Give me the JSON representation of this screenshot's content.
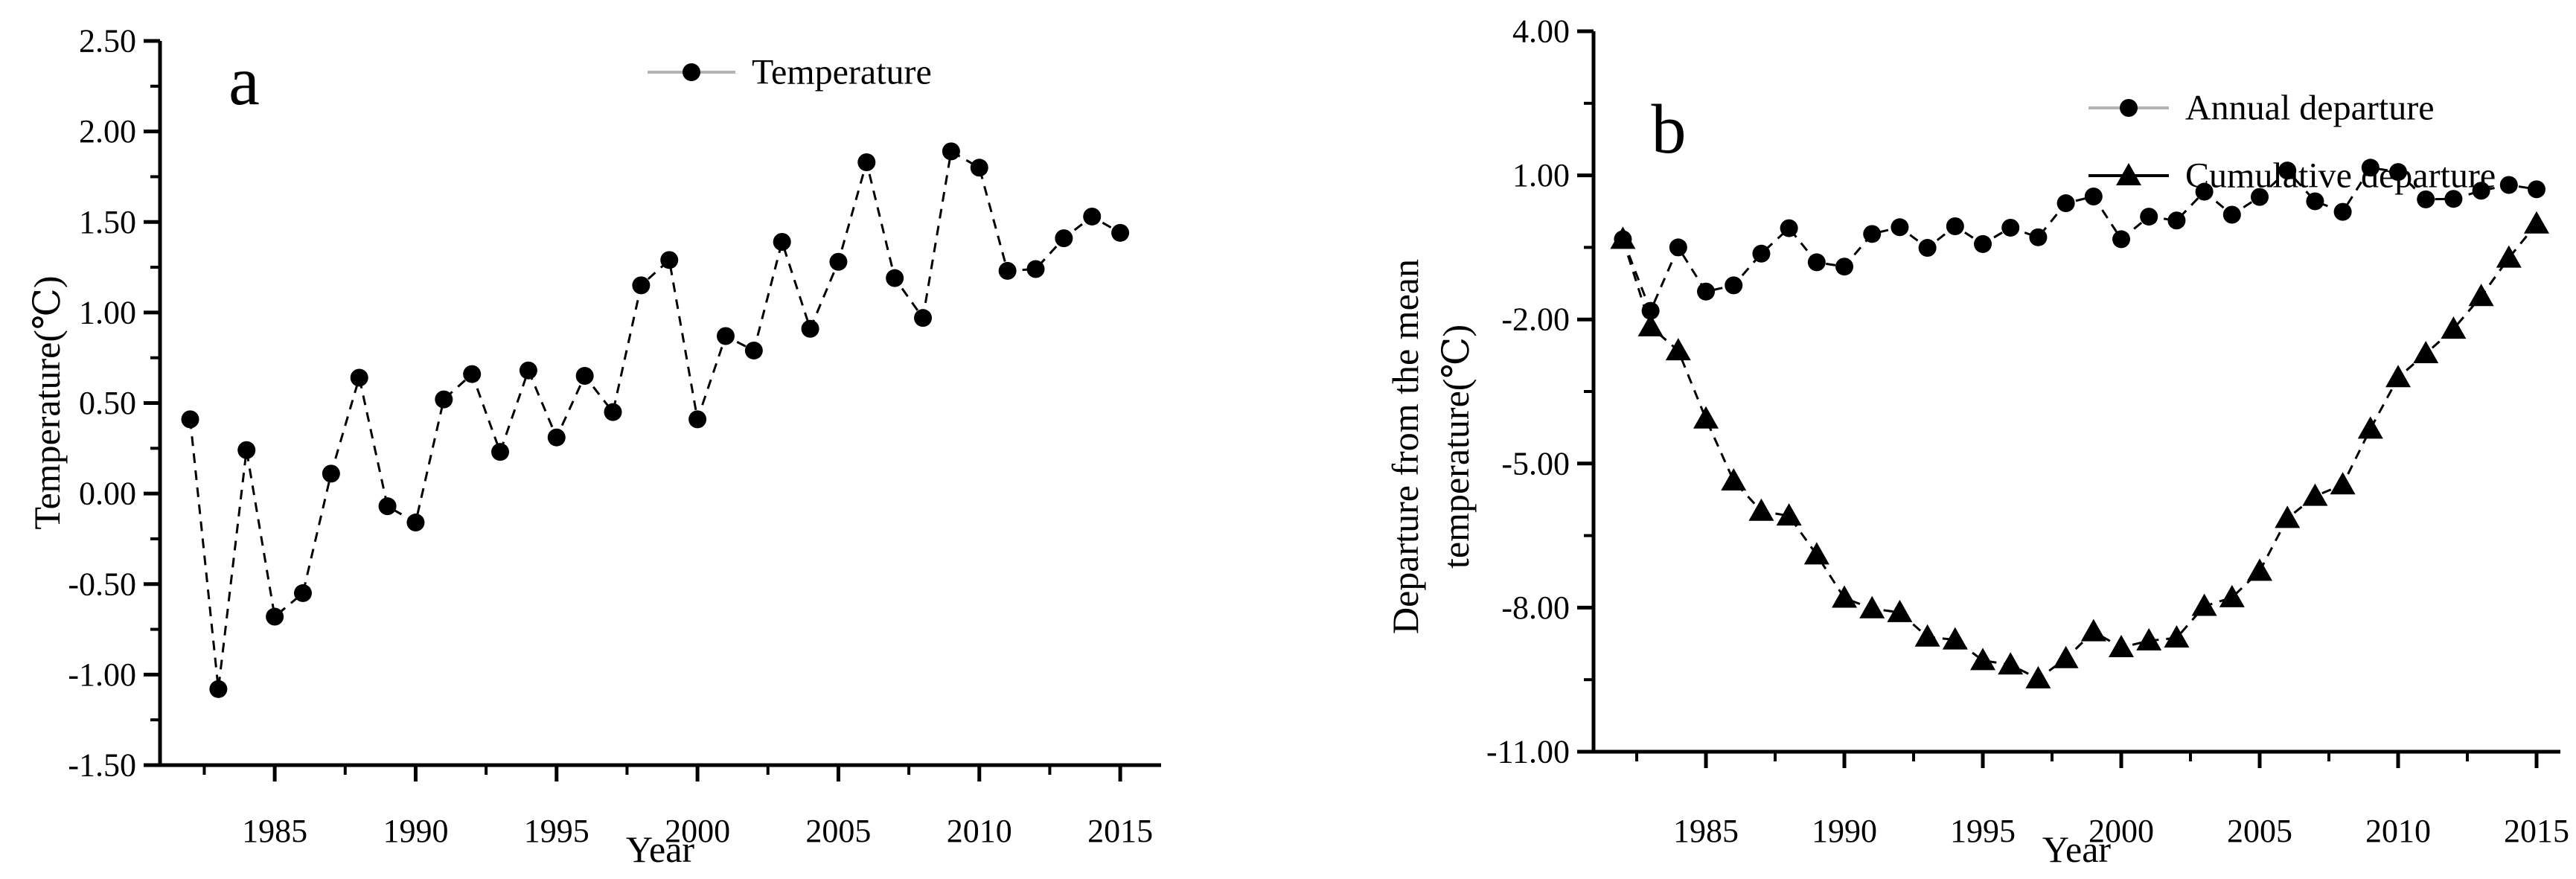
{
  "figure": {
    "background_color": "#ffffff",
    "text_color": "#000000",
    "legend_gray_line_color": "#b3b3b3",
    "series_line_color": "#000000"
  },
  "chart_data": [
    {
      "type": "line",
      "panel_label": "a",
      "title": "",
      "xlabel": "Year",
      "ylabel": "Temperature(℃)",
      "legend_position": "top-center",
      "x": [
        1982,
        1983,
        1984,
        1985,
        1986,
        1987,
        1988,
        1989,
        1990,
        1991,
        1992,
        1993,
        1994,
        1995,
        1996,
        1997,
        1998,
        1999,
        2000,
        2001,
        2002,
        2003,
        2004,
        2005,
        2006,
        2007,
        2008,
        2009,
        2010,
        2011,
        2012,
        2013,
        2014,
        2015
      ],
      "series": [
        {
          "name": "Temperature",
          "marker": "circle",
          "line_style": "dashed",
          "line_color": "#000000",
          "legend_swatch_line_color": "#b3b3b3",
          "values": [
            0.41,
            -1.08,
            0.24,
            -0.68,
            -0.55,
            0.11,
            0.64,
            -0.07,
            -0.16,
            0.52,
            0.66,
            0.23,
            0.68,
            0.31,
            0.65,
            0.45,
            1.15,
            1.29,
            0.41,
            0.87,
            0.79,
            1.39,
            0.91,
            1.28,
            1.83,
            1.19,
            0.97,
            1.89,
            1.8,
            1.23,
            1.24,
            1.41,
            1.53,
            1.44
          ]
        }
      ],
      "axes": {
        "x": {
          "label": "Year",
          "range": [
            1980.93,
            2016.45
          ],
          "major_ticks": [
            1985,
            1990,
            1995,
            2000,
            2005,
            2010,
            2015
          ],
          "tick_labels": [
            "1985",
            "1990",
            "1995",
            "2000",
            "2005",
            "2010",
            "2015"
          ],
          "minor_ticks": [
            1982.5,
            1987.5,
            1992.5,
            1997.5,
            2002.5,
            2007.5,
            2012.5
          ]
        },
        "y": {
          "label": "Temperature(℃)",
          "range": [
            -1.5,
            2.5
          ],
          "major_ticks": [
            -1.5,
            -1.0,
            -0.5,
            0.0,
            0.5,
            1.0,
            1.5,
            2.0,
            2.5
          ],
          "tick_labels": [
            "-1.50",
            "-1.00",
            "-0.50",
            "0.00",
            "0.50",
            "1.00",
            "1.50",
            "2.00",
            "2.50"
          ],
          "minor_ticks": [
            -1.25,
            -0.75,
            -0.25,
            0.25,
            0.75,
            1.25,
            1.75,
            2.25
          ]
        },
        "grid": false
      }
    },
    {
      "type": "line",
      "panel_label": "b",
      "title": "",
      "xlabel": "Year",
      "ylabel": "Departure from the mean temperature(℃)",
      "ylabel_lines": [
        "Departure from the mean",
        "temperature(℃)"
      ],
      "legend_position": "top-center",
      "x": [
        1982,
        1983,
        1984,
        1985,
        1986,
        1987,
        1988,
        1989,
        1990,
        1991,
        1992,
        1993,
        1994,
        1995,
        1996,
        1997,
        1998,
        1999,
        2000,
        2001,
        2002,
        2003,
        2004,
        2005,
        2006,
        2007,
        2008,
        2009,
        2010,
        2011,
        2012,
        2013,
        2014,
        2015
      ],
      "series": [
        {
          "name": "Annual departure",
          "marker": "circle",
          "line_style": "dashed",
          "line_color": "#000000",
          "legend_swatch_line_color": "#b3b3b3",
          "values": [
            -0.33,
            -1.82,
            -0.5,
            -1.42,
            -1.29,
            -0.63,
            -0.1,
            -0.81,
            -0.9,
            -0.22,
            -0.08,
            -0.51,
            -0.06,
            -0.43,
            -0.09,
            -0.29,
            0.42,
            0.56,
            -0.33,
            0.14,
            0.06,
            0.66,
            0.18,
            0.55,
            1.1,
            0.46,
            0.24,
            1.16,
            1.07,
            0.5,
            0.51,
            0.68,
            0.8,
            0.71
          ]
        },
        {
          "name": "Cumulative departure",
          "marker": "triangle",
          "line_style": "dashed",
          "line_color": "#000000",
          "legend_swatch_line_color": "#000000",
          "values": [
            -0.33,
            -2.15,
            -2.65,
            -4.07,
            -5.36,
            -5.99,
            -6.09,
            -6.9,
            -7.8,
            -8.02,
            -8.1,
            -8.61,
            -8.67,
            -9.1,
            -9.19,
            -9.48,
            -9.06,
            -8.5,
            -8.83,
            -8.69,
            -8.63,
            -7.97,
            -7.79,
            -7.24,
            -6.14,
            -5.68,
            -5.44,
            -4.28,
            -3.21,
            -2.71,
            -2.2,
            -1.52,
            -0.72,
            -0.01
          ]
        }
      ],
      "axes": {
        "x": {
          "label": "Year",
          "range": [
            1980.94,
            2015.86
          ],
          "major_ticks": [
            1985,
            1990,
            1995,
            2000,
            2005,
            2010,
            2015
          ],
          "tick_labels": [
            "1985",
            "1990",
            "1995",
            "2000",
            "2005",
            "2010",
            "2015"
          ],
          "minor_ticks": [
            1982.5,
            1987.5,
            1992.5,
            1997.5,
            2002.5,
            2007.5,
            2012.5
          ]
        },
        "y": {
          "label": "Departure from the mean temperature(℃)",
          "range": [
            -11.0,
            4.0
          ],
          "major_ticks": [
            -11.0,
            -8.0,
            -5.0,
            -2.0,
            1.0,
            4.0
          ],
          "tick_labels": [
            "-11.00",
            "-8.00",
            "-5.00",
            "-2.00",
            "1.00",
            "4.00"
          ],
          "minor_ticks": [
            -9.5,
            -6.5,
            -3.5,
            -0.5,
            2.5
          ]
        },
        "grid": false
      }
    }
  ]
}
